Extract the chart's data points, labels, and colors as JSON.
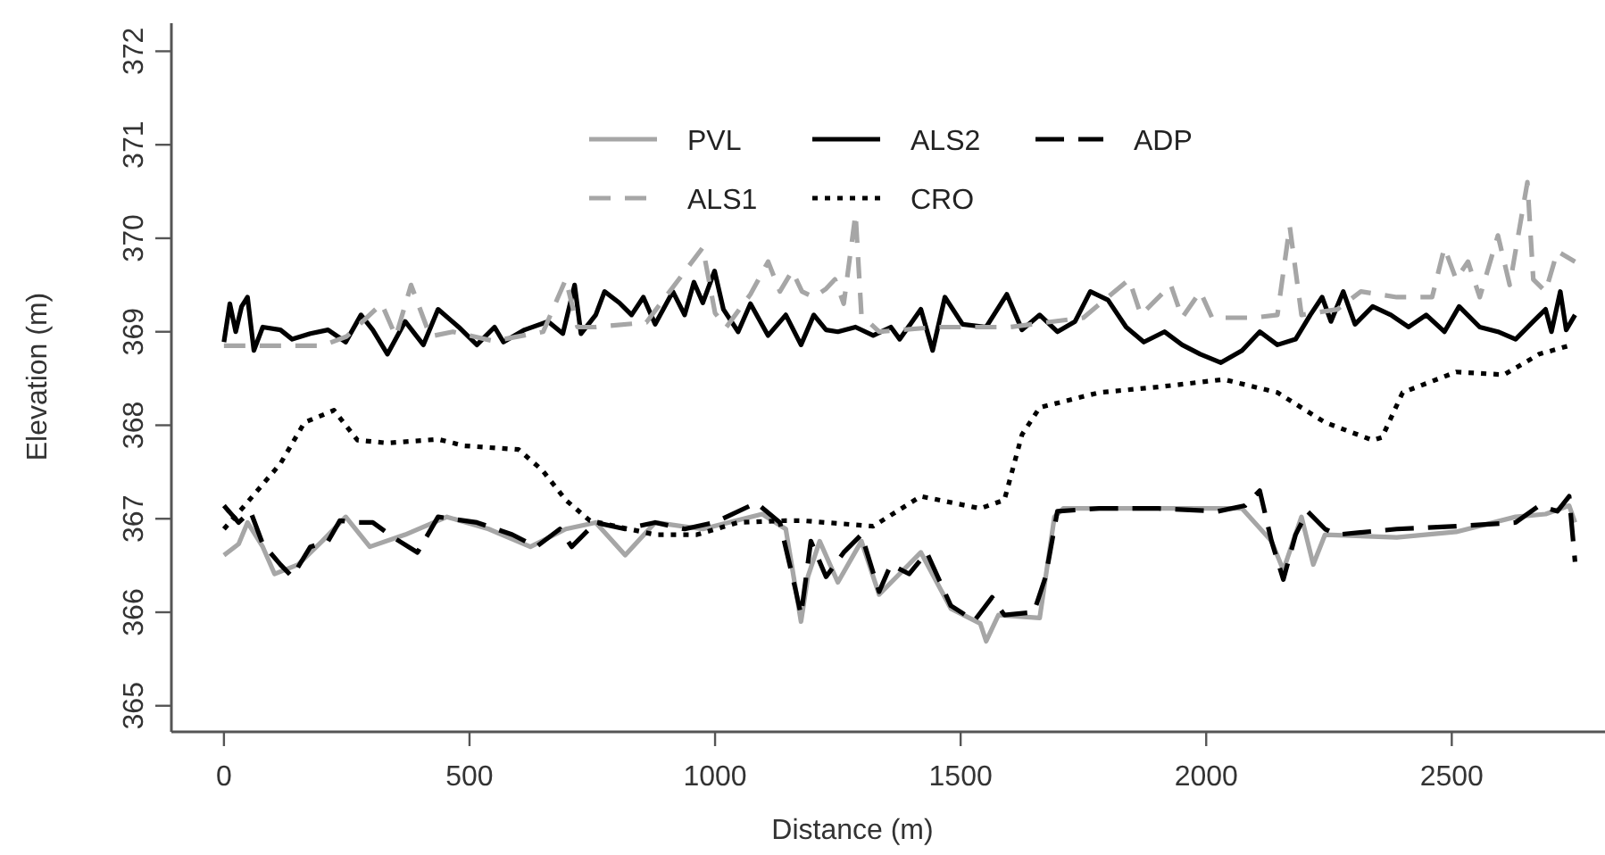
{
  "chart_data": {
    "type": "line",
    "xlabel": "Distance (m)",
    "ylabel": "Elevation (m)",
    "xlim": [
      -107,
      2812
    ],
    "ylim": [
      364.74,
      372.3
    ],
    "xticks": [
      0,
      500,
      1000,
      1500,
      2000,
      2500
    ],
    "yticks": [
      365,
      366,
      367,
      368,
      369,
      370,
      371,
      372
    ],
    "grid": false,
    "legend": "top",
    "marker": "none",
    "series": [
      {
        "name": "PVL",
        "color": "#a6a6a6",
        "line_style": "solid",
        "x": [
          0,
          30,
          48,
          79,
          103,
          151,
          200,
          248,
          297,
          369,
          454,
          539,
          624,
          696,
          757,
          817,
          878,
          975,
          1096,
          1144,
          1175,
          1189,
          1213,
          1250,
          1298,
          1334,
          1419,
          1480,
          1540,
          1552,
          1577,
          1661,
          1691,
          1709,
          2073,
          2133,
          2157,
          2194,
          2218,
          2242,
          2388,
          2509,
          2630,
          2691,
          2739,
          2751
        ],
        "values": [
          366.61,
          366.73,
          366.96,
          366.7,
          366.41,
          366.51,
          366.76,
          367.02,
          366.7,
          366.83,
          367.02,
          366.89,
          366.7,
          366.89,
          366.96,
          366.61,
          366.96,
          366.89,
          367.05,
          366.89,
          365.9,
          366.38,
          366.76,
          366.32,
          366.76,
          366.19,
          366.64,
          366.04,
          365.88,
          365.69,
          365.97,
          365.94,
          367.02,
          367.11,
          367.11,
          366.76,
          366.45,
          367.02,
          366.51,
          366.83,
          366.8,
          366.86,
          367.02,
          367.05,
          367.14,
          366.96
        ]
      },
      {
        "name": "ALS2",
        "color": "#000000",
        "line_style": "solid",
        "x": [
          0,
          12,
          24,
          36,
          48,
          61,
          79,
          115,
          139,
          176,
          212,
          248,
          279,
          303,
          333,
          369,
          406,
          436,
          478,
          515,
          551,
          569,
          612,
          660,
          690,
          714,
          727,
          757,
          775,
          805,
          830,
          854,
          878,
          914,
          938,
          957,
          975,
          999,
          1017,
          1047,
          1072,
          1108,
          1144,
          1175,
          1201,
          1226,
          1250,
          1286,
          1322,
          1358,
          1376,
          1419,
          1443,
          1468,
          1504,
          1552,
          1594,
          1625,
          1661,
          1697,
          1733,
          1764,
          1800,
          1837,
          1873,
          1915,
          1951,
          1988,
          2030,
          2073,
          2109,
          2145,
          2182,
          2212,
          2236,
          2254,
          2279,
          2303,
          2339,
          2376,
          2412,
          2448,
          2485,
          2515,
          2557,
          2594,
          2630,
          2666,
          2691,
          2703,
          2721,
          2733,
          2751
        ],
        "values": [
          368.89,
          369.3,
          369.0,
          369.27,
          369.37,
          368.8,
          369.05,
          369.02,
          368.92,
          368.98,
          369.02,
          368.89,
          369.18,
          369.02,
          368.76,
          369.11,
          368.86,
          369.24,
          369.05,
          368.86,
          369.05,
          368.89,
          369.02,
          369.11,
          368.98,
          369.5,
          368.98,
          369.18,
          369.43,
          369.31,
          369.18,
          369.37,
          369.08,
          369.43,
          369.18,
          369.53,
          369.31,
          369.65,
          369.24,
          369.0,
          369.3,
          368.96,
          369.18,
          368.86,
          369.18,
          369.02,
          369.0,
          369.05,
          368.96,
          369.05,
          368.92,
          369.24,
          368.8,
          369.37,
          369.08,
          369.05,
          369.4,
          369.02,
          369.18,
          369.0,
          369.11,
          369.43,
          369.34,
          369.05,
          368.89,
          369.0,
          368.86,
          368.76,
          368.67,
          368.8,
          369.0,
          368.86,
          368.92,
          369.18,
          369.37,
          369.11,
          369.43,
          369.08,
          369.27,
          369.18,
          369.05,
          369.18,
          369.0,
          369.27,
          369.05,
          369.0,
          368.92,
          369.11,
          369.24,
          369.0,
          369.43,
          369.02,
          369.18
        ]
      },
      {
        "name": "ADP",
        "color": "#000000",
        "line_style": "longdash",
        "x": [
          0,
          30,
          54,
          79,
          115,
          139,
          176,
          212,
          236,
          272,
          303,
          345,
          394,
          436,
          515,
          587,
          636,
          684,
          708,
          757,
          817,
          878,
          938,
          999,
          1084,
          1132,
          1163,
          1175,
          1195,
          1226,
          1262,
          1298,
          1334,
          1358,
          1395,
          1431,
          1480,
          1528,
          1564,
          1589,
          1649,
          1673,
          1697,
          1782,
          1903,
          2024,
          2079,
          2109,
          2133,
          2157,
          2182,
          2206,
          2242,
          2267,
          2388,
          2509,
          2630,
          2678,
          2715,
          2739,
          2751
        ],
        "values": [
          367.14,
          366.96,
          367.08,
          366.73,
          366.51,
          366.38,
          366.7,
          366.76,
          366.98,
          366.96,
          366.96,
          366.8,
          366.64,
          367.02,
          366.96,
          366.83,
          366.7,
          366.89,
          366.7,
          366.96,
          366.89,
          366.96,
          366.89,
          366.96,
          367.17,
          366.96,
          366.26,
          365.97,
          366.76,
          366.38,
          366.64,
          366.83,
          366.22,
          366.51,
          366.41,
          366.64,
          366.07,
          365.91,
          366.16,
          365.97,
          366.0,
          366.38,
          367.08,
          367.11,
          367.11,
          367.08,
          367.14,
          367.3,
          366.76,
          366.35,
          366.83,
          367.08,
          366.89,
          366.83,
          366.89,
          366.92,
          366.96,
          367.14,
          367.08,
          367.24,
          366.54
        ]
      },
      {
        "name": "ALS1",
        "color": "#a6a6a6",
        "line_style": "dashed",
        "x": [
          0,
          100,
          200,
          250,
          321,
          350,
          381,
          420,
          466,
          550,
          650,
          696,
          720,
          757,
          860,
          975,
          1000,
          1023,
          1072,
          1108,
          1132,
          1157,
          1177,
          1201,
          1226,
          1244,
          1262,
          1286,
          1298,
          1334,
          1450,
          1600,
          1750,
          1843,
          1867,
          1928,
          1951,
          1988,
          2012,
          2097,
          2145,
          2170,
          2194,
          2267,
          2315,
          2388,
          2460,
          2485,
          2509,
          2533,
          2557,
          2594,
          2618,
          2654,
          2666,
          2691,
          2715,
          2751
        ],
        "values": [
          368.85,
          368.85,
          368.85,
          368.95,
          369.3,
          368.95,
          369.5,
          368.95,
          369.0,
          368.9,
          369.0,
          369.56,
          369.05,
          369.05,
          369.1,
          369.9,
          369.2,
          369.05,
          369.4,
          369.75,
          369.43,
          369.65,
          369.43,
          369.37,
          369.46,
          369.56,
          369.3,
          370.26,
          369.18,
          369.0,
          369.05,
          369.05,
          369.15,
          369.56,
          369.18,
          369.5,
          369.15,
          369.43,
          369.15,
          369.15,
          369.18,
          370.13,
          369.18,
          369.24,
          369.43,
          369.37,
          369.37,
          369.9,
          369.56,
          369.75,
          369.37,
          370.03,
          369.5,
          370.6,
          369.56,
          369.43,
          369.86,
          369.75
        ]
      },
      {
        "name": "CRO",
        "color": "#000000",
        "line_style": "dotted",
        "x": [
          0,
          42,
          115,
          164,
          224,
          272,
          333,
          436,
          490,
          600,
          648,
          696,
          745,
          878,
          963,
          1047,
          1144,
          1177,
          1322,
          1419,
          1540,
          1589,
          1625,
          1661,
          1782,
          1903,
          2036,
          2145,
          2242,
          2339,
          2358,
          2400,
          2509,
          2606,
          2678,
          2745
        ],
        "values": [
          366.89,
          367.14,
          367.59,
          368.03,
          368.16,
          367.84,
          367.81,
          367.85,
          367.78,
          367.74,
          367.52,
          367.2,
          366.98,
          366.83,
          366.83,
          366.96,
          366.98,
          366.98,
          366.92,
          367.24,
          367.11,
          367.2,
          367.9,
          368.19,
          368.35,
          368.41,
          368.49,
          368.35,
          368.03,
          367.84,
          367.87,
          368.35,
          368.57,
          368.54,
          368.76,
          368.86
        ]
      }
    ]
  }
}
